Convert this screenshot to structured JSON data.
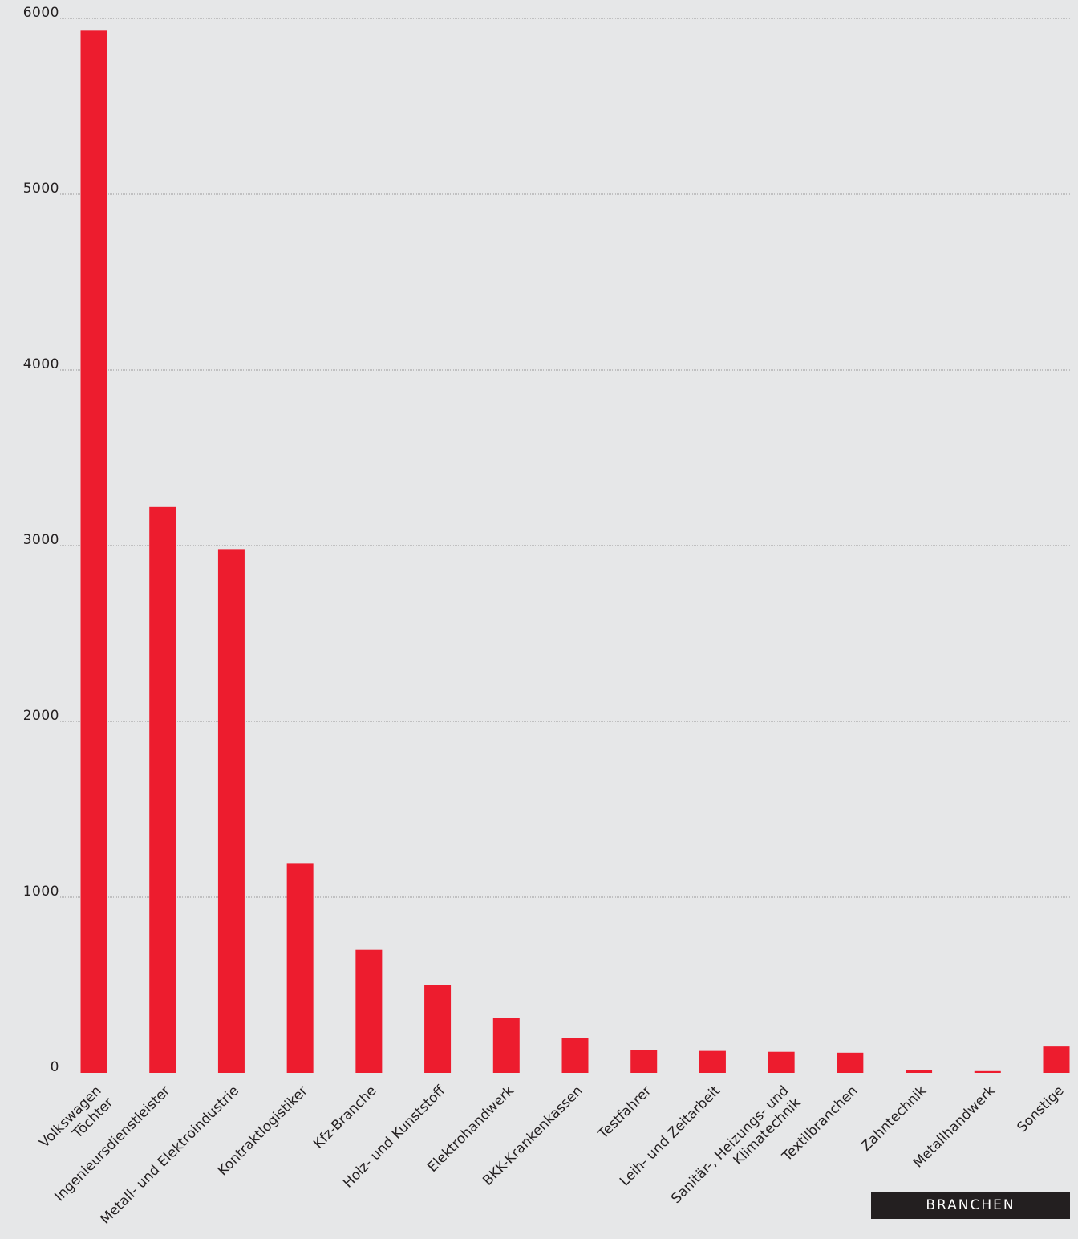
{
  "chart_data": {
    "type": "bar",
    "title": "",
    "xlabel": "BRANCHEN",
    "ylabel": "",
    "ylim": [
      0,
      6000
    ],
    "yticks": [
      "0",
      "1000",
      "2000",
      "3000",
      "4000",
      "5000",
      "6000"
    ],
    "grid": true,
    "categories": [
      [
        "Volkswagen",
        "Töchter"
      ],
      [
        "Ingenieursdienstleister"
      ],
      [
        "Metall- und Elektroindustrie"
      ],
      [
        "Kontraktlogistiker"
      ],
      [
        "Kfz-Branche"
      ],
      [
        "Holz- und Kunststoff"
      ],
      [
        "Elektrohandwerk"
      ],
      [
        "BKK-Krankenkassen"
      ],
      [
        "Testfahrer"
      ],
      [
        "Leih- und Zeitarbeit"
      ],
      [
        "Sanitär-, Heizungs- und",
        "Klimatechnik"
      ],
      [
        "Textilbranchen"
      ],
      [
        "Zahntechnik"
      ],
      [
        "Metallhandwerk"
      ],
      [
        "Sonstige"
      ]
    ],
    "values": [
      5930,
      3220,
      2980,
      1190,
      700,
      500,
      315,
      200,
      130,
      125,
      120,
      115,
      15,
      10,
      150
    ],
    "bar_color": "#ed1c2e"
  }
}
